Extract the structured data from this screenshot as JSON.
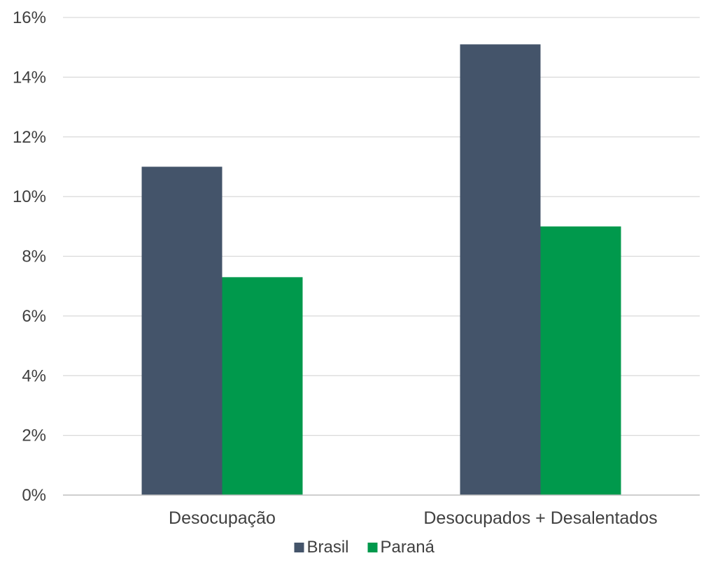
{
  "chart_data": {
    "type": "bar",
    "categories": [
      "Desocupação",
      "Desocupados + Desalentados"
    ],
    "series": [
      {
        "name": "Brasil",
        "values": [
          11.0,
          15.1
        ],
        "color": "#44546a"
      },
      {
        "name": "Paraná",
        "values": [
          7.3,
          9.0
        ],
        "color": "#00994c"
      }
    ],
    "ylim": [
      0,
      16
    ],
    "yticks": [
      0,
      2,
      4,
      6,
      8,
      10,
      12,
      14,
      16
    ],
    "ytick_labels": [
      "0%",
      "2%",
      "4%",
      "6%",
      "8%",
      "10%",
      "12%",
      "14%",
      "16%"
    ],
    "grid": true,
    "legend_position": "bottom"
  }
}
